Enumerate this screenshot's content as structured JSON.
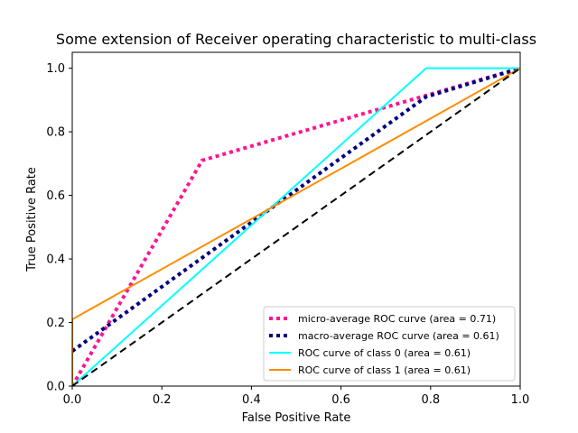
{
  "chart_data": {
    "type": "line",
    "title": "Some extension of Receiver operating characteristic to multi-class",
    "xlabel": "False Positive Rate",
    "ylabel": "True Positive Rate",
    "xlim": [
      0.0,
      1.0
    ],
    "ylim": [
      0.0,
      1.05
    ],
    "xticks": [
      "0.0",
      "0.2",
      "0.4",
      "0.6",
      "0.8",
      "1.0"
    ],
    "yticks": [
      "0.0",
      "0.2",
      "0.4",
      "0.6",
      "0.8",
      "1.0"
    ],
    "grid": false,
    "legend_position": "lower-right",
    "series": [
      {
        "name": "micro-average ROC curve (area = 0.71)",
        "color": "#ff1493",
        "style": "dotted",
        "x": [
          0.0,
          0.29,
          1.0
        ],
        "y": [
          0.0,
          0.71,
          1.0
        ]
      },
      {
        "name": "macro-average ROC curve (area = 0.61)",
        "color": "#000080",
        "style": "dotted",
        "x": [
          0.0,
          0.79,
          1.0
        ],
        "y": [
          0.11,
          0.91,
          1.0
        ]
      },
      {
        "name": "ROC curve of class 0 (area = 0.61)",
        "color": "#00ffff",
        "style": "solid",
        "x": [
          0.0,
          0.79,
          1.0
        ],
        "y": [
          0.0,
          1.0,
          1.0
        ]
      },
      {
        "name": "ROC curve of class 1 (area = 0.61)",
        "color": "#ff8c00",
        "style": "solid",
        "x": [
          0.0,
          0.0,
          1.0
        ],
        "y": [
          0.0,
          0.21,
          1.0
        ]
      }
    ],
    "reference_line": {
      "color": "#000000",
      "style": "dashed",
      "x": [
        0.0,
        1.0
      ],
      "y": [
        0.0,
        1.0
      ]
    }
  }
}
